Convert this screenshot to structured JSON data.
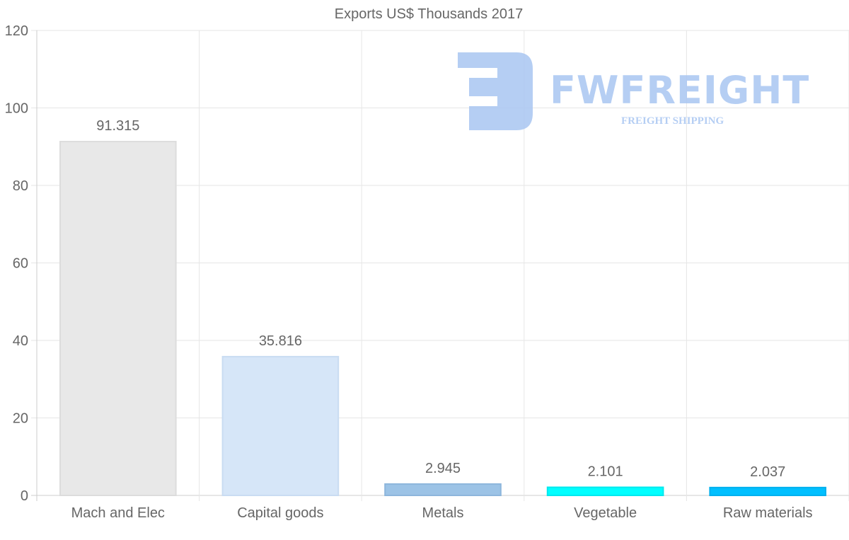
{
  "chart_data": {
    "type": "bar",
    "title": "Exports US$ Thousands 2017",
    "categories": [
      "Mach and Elec",
      "Capital goods",
      "Metals",
      "Vegetable",
      "Raw materials"
    ],
    "values": [
      91.315,
      35.816,
      2.945,
      2.101,
      2.037
    ],
    "data_labels": [
      "91.315",
      "35.816",
      "2.945",
      "2.101",
      "2.037"
    ],
    "colors": [
      "#e8e8e8",
      "#d6e6f8",
      "#9cc3e6",
      "#00ffff",
      "#00bfff"
    ],
    "border_colors": [
      "#dcdcdc",
      "#c9dcf2",
      "#8db6dc",
      "#00e8ee",
      "#00b0ee"
    ],
    "xlabel": "",
    "ylabel": "",
    "ylim": [
      0,
      120
    ],
    "yticks": [
      0,
      20,
      40,
      60,
      80,
      100,
      120
    ],
    "grid": true,
    "legend": "none"
  },
  "watermark": {
    "brand": "FWFREIGHT",
    "tagline": "FREIGHT SHIPPING"
  }
}
